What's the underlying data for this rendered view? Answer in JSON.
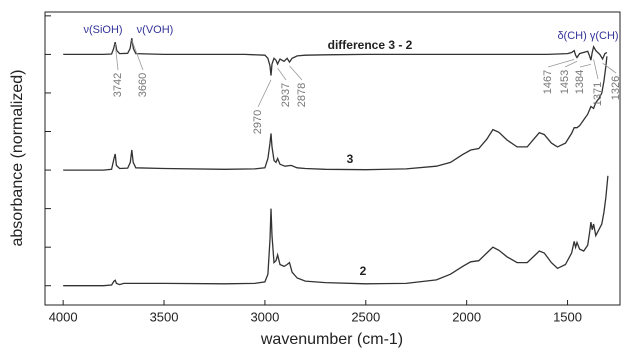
{
  "chart_data": {
    "type": "line",
    "xlabel": "wavenumber (cm-1)",
    "ylabel": "absorbance (normalized)",
    "xlim": [
      4090,
      1240
    ],
    "xticks": [
      4000,
      3500,
      3000,
      2500,
      2000,
      1500
    ],
    "ylim": [
      -0.5,
      7.1
    ],
    "yticks": [
      0,
      1,
      2,
      3,
      4,
      5,
      6,
      7
    ],
    "annotations": [
      "ν(SiOH)",
      "ν(VOH)",
      "δ(CH) γ(CH)"
    ],
    "annotation_color": "#333399",
    "peak_labels": [
      3742,
      3660,
      2970,
      2937,
      2878,
      1467,
      1453,
      1384,
      1371,
      1326
    ],
    "series": [
      {
        "name": "2",
        "color": "#333333",
        "x": [
          4000,
          3800,
          3760,
          3748,
          3742,
          3736,
          3720,
          3700,
          3500,
          3200,
          3050,
          3000,
          2985,
          2975,
          2970,
          2965,
          2955,
          2945,
          2937,
          2925,
          2905,
          2890,
          2878,
          2865,
          2840,
          2800,
          2700,
          2500,
          2300,
          2150,
          2080,
          2020,
          1980,
          1940,
          1900,
          1870,
          1840,
          1800,
          1750,
          1700,
          1660,
          1640,
          1615,
          1580,
          1550,
          1510,
          1480,
          1467,
          1460,
          1453,
          1440,
          1420,
          1400,
          1390,
          1384,
          1378,
          1371,
          1360,
          1345,
          1330,
          1320,
          1310,
          1300
        ],
        "values": [
          0,
          0,
          0.02,
          0.12,
          0.14,
          0.06,
          0.03,
          0.06,
          0.06,
          0.05,
          0.06,
          0.1,
          0.3,
          1.2,
          2.0,
          1.3,
          0.6,
          0.65,
          0.8,
          0.55,
          0.5,
          0.55,
          0.6,
          0.35,
          0.2,
          0.12,
          0.08,
          0.05,
          0.06,
          0.15,
          0.3,
          0.5,
          0.62,
          0.65,
          0.85,
          1.0,
          0.92,
          0.75,
          0.6,
          0.6,
          0.8,
          0.9,
          0.85,
          0.6,
          0.45,
          0.55,
          0.85,
          1.15,
          1.0,
          1.12,
          0.95,
          0.9,
          1.05,
          1.4,
          1.65,
          1.45,
          1.6,
          1.3,
          1.45,
          1.6,
          1.9,
          2.3,
          2.85
        ]
      },
      {
        "name": "3",
        "color": "#333333",
        "x": [
          4000,
          3800,
          3760,
          3748,
          3742,
          3736,
          3720,
          3680,
          3667,
          3660,
          3653,
          3640,
          3500,
          3200,
          3050,
          3000,
          2985,
          2975,
          2970,
          2965,
          2955,
          2945,
          2937,
          2925,
          2900,
          2870,
          2840,
          2800,
          2700,
          2500,
          2300,
          2150,
          2080,
          2020,
          1980,
          1940,
          1900,
          1870,
          1840,
          1800,
          1750,
          1700,
          1660,
          1640,
          1615,
          1580,
          1550,
          1510,
          1480,
          1467,
          1453,
          1440,
          1420,
          1400,
          1384,
          1371,
          1360,
          1345,
          1330,
          1320,
          1310,
          1305
        ],
        "values": [
          3,
          3,
          3.02,
          3.3,
          3.42,
          3.12,
          3.04,
          3.05,
          3.2,
          3.52,
          3.2,
          3.06,
          3.04,
          3.02,
          3.03,
          3.06,
          3.3,
          3.7,
          3.95,
          3.6,
          3.25,
          3.2,
          3.3,
          3.15,
          3.1,
          3.12,
          3.06,
          3.04,
          3.02,
          3.01,
          3.03,
          3.1,
          3.2,
          3.4,
          3.52,
          3.56,
          3.8,
          4.05,
          3.98,
          3.78,
          3.6,
          3.6,
          3.85,
          3.97,
          3.92,
          3.7,
          3.6,
          3.7,
          3.95,
          4.1,
          4.1,
          4.15,
          4.3,
          4.45,
          4.65,
          4.6,
          4.75,
          4.85,
          5.0,
          5.3,
          5.7,
          5.95
        ]
      },
      {
        "name": "difference 3 - 2",
        "color": "#333333",
        "x": [
          4000,
          3800,
          3760,
          3750,
          3742,
          3734,
          3720,
          3680,
          3668,
          3660,
          3652,
          3640,
          3500,
          3100,
          3000,
          2985,
          2975,
          2970,
          2965,
          2955,
          2945,
          2937,
          2925,
          2905,
          2890,
          2878,
          2865,
          2840,
          2800,
          2700,
          2500,
          2000,
          1600,
          1500,
          1480,
          1467,
          1460,
          1453,
          1440,
          1400,
          1390,
          1384,
          1378,
          1371,
          1360,
          1340,
          1326,
          1315,
          1305
        ],
        "values": [
          6,
          6,
          6.01,
          6.15,
          6.32,
          6.1,
          6.02,
          6.03,
          6.15,
          6.42,
          6.15,
          6.02,
          6.0,
          6.0,
          5.98,
          5.9,
          5.7,
          5.45,
          5.75,
          5.9,
          5.85,
          5.75,
          5.88,
          5.82,
          5.9,
          5.8,
          5.9,
          5.96,
          5.98,
          5.99,
          6.0,
          6.0,
          6.0,
          6.02,
          6.05,
          6.1,
          5.98,
          5.92,
          6.02,
          6.08,
          5.95,
          5.85,
          6.05,
          6.2,
          6.1,
          6.0,
          5.88,
          6.02,
          6.05
        ]
      }
    ]
  }
}
